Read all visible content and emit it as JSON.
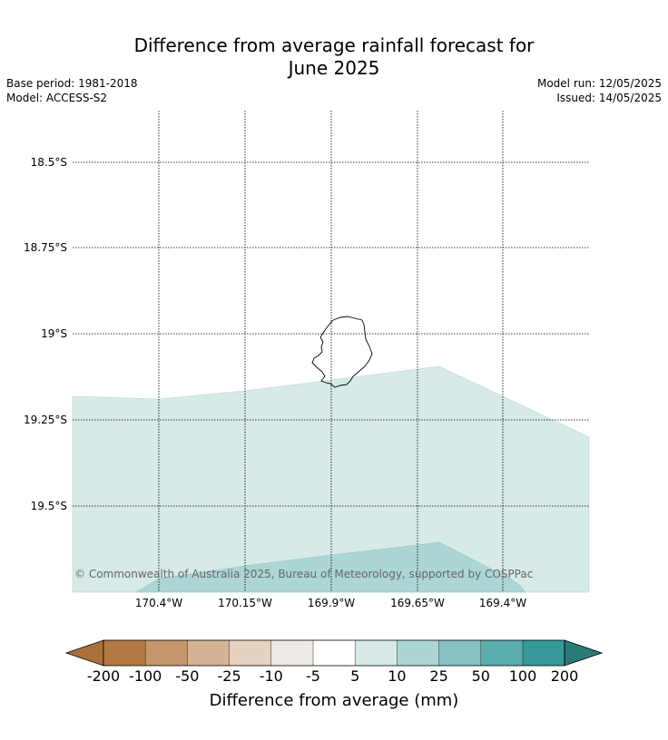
{
  "title_line1": "Difference from average rainfall forecast for",
  "title_line2": "June 2025",
  "base_period": "Base period: 1981-2018",
  "model": "Model: ACCESS-S2",
  "model_run": "Model run: 12/05/2025",
  "issued": "Issued: 14/05/2025",
  "copyright": "© Commonwealth of Australia 2025, Bureau of Meteorology, supported by COSPPac",
  "map": {
    "lat_labels": [
      "18.5°S",
      "18.75°S",
      "19°S",
      "19.25°S",
      "19.5°S"
    ],
    "lon_labels": [
      "170.4°W",
      "170.15°W",
      "169.9°W",
      "169.65°W",
      "169.4°W"
    ],
    "lat_range": [
      -19.75,
      -18.35
    ],
    "lon_range": [
      -170.65,
      -169.15
    ],
    "gridlines": true
  },
  "colorbar": {
    "label": "Difference from average (mm)",
    "ticks": [
      "-200",
      "-100",
      "-50",
      "-25",
      "-10",
      "-5",
      "5",
      "10",
      "25",
      "50",
      "100",
      "200"
    ],
    "colors": [
      "#a9703a",
      "#b27a42",
      "#c3976b",
      "#d5b394",
      "#e7d1c0",
      "#ece9e7",
      "#ffffff",
      "#d6eae8",
      "#acd6d3",
      "#85c2c1",
      "#5aaeae",
      "#359a99",
      "#2c7a78"
    ]
  }
}
